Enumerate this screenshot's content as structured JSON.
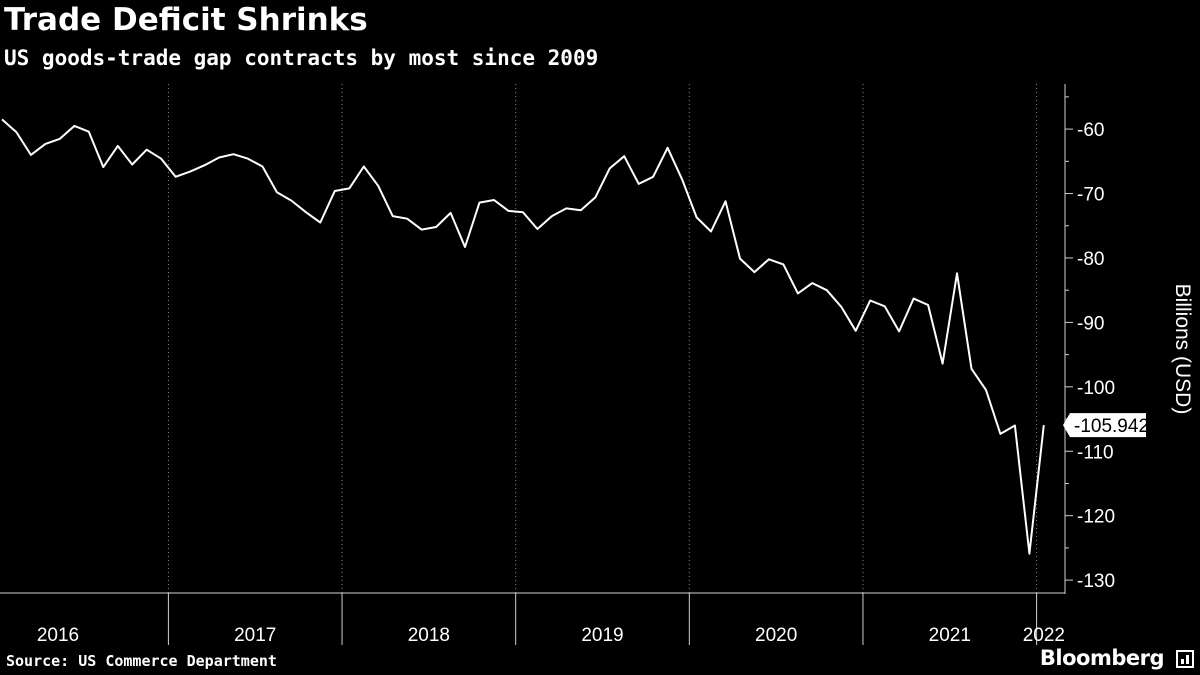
{
  "header": {
    "title": "Trade Deficit Shrinks",
    "subtitle": "US goods-trade gap contracts by most since 2009"
  },
  "footer": {
    "source": "Source: US Commerce Department",
    "brand": "Bloomberg",
    "brand_icon": "terminal-icon"
  },
  "chart_data": {
    "type": "line",
    "title": "Trade Deficit Shrinks",
    "subtitle": "US goods-trade gap contracts by most since 2009",
    "ylabel": "Billions (USD)",
    "xlabel": "",
    "x_tick_labels": [
      "2016",
      "2017",
      "2018",
      "2019",
      "2020",
      "2021",
      "2022"
    ],
    "y_ticks": [
      -60,
      -70,
      -80,
      -90,
      -100,
      -110,
      -120,
      -130
    ],
    "ylim": [
      -132,
      -53
    ],
    "x_start": "2016-01",
    "grid": "vertical dotted at year boundaries",
    "line_color": "#ffffff",
    "background_color": "#000000",
    "last_value_label": "-105.942",
    "series": [
      {
        "values": [
          -58.5,
          -60.5,
          -64.0,
          -62.3,
          -61.5,
          -59.5,
          -60.4,
          -65.9,
          -62.6,
          -65.5,
          -63.2,
          -64.6,
          -67.4,
          -66.6,
          -65.6,
          -64.4,
          -63.9,
          -64.6,
          -65.8,
          -69.8,
          -71.1,
          -72.9,
          -74.5,
          -69.6,
          -69.2,
          -65.8,
          -68.8,
          -73.5,
          -73.9,
          -75.6,
          -75.2,
          -73.0,
          -78.3,
          -71.4,
          -71.0,
          -72.7,
          -72.9,
          -75.5,
          -73.5,
          -72.3,
          -72.6,
          -70.6,
          -66.1,
          -64.2,
          -68.5,
          -67.4,
          -62.9,
          -67.8,
          -73.7,
          -75.9,
          -71.2,
          -80.1,
          -82.2,
          -80.2,
          -81.0,
          -85.5,
          -83.9,
          -85.0,
          -87.6,
          -91.3,
          -86.6,
          -87.5,
          -91.4,
          -86.3,
          -87.3,
          -96.4,
          -82.4,
          -97.2,
          -100.5,
          -107.3,
          -106.0,
          -125.9,
          -105.942
        ]
      }
    ]
  }
}
